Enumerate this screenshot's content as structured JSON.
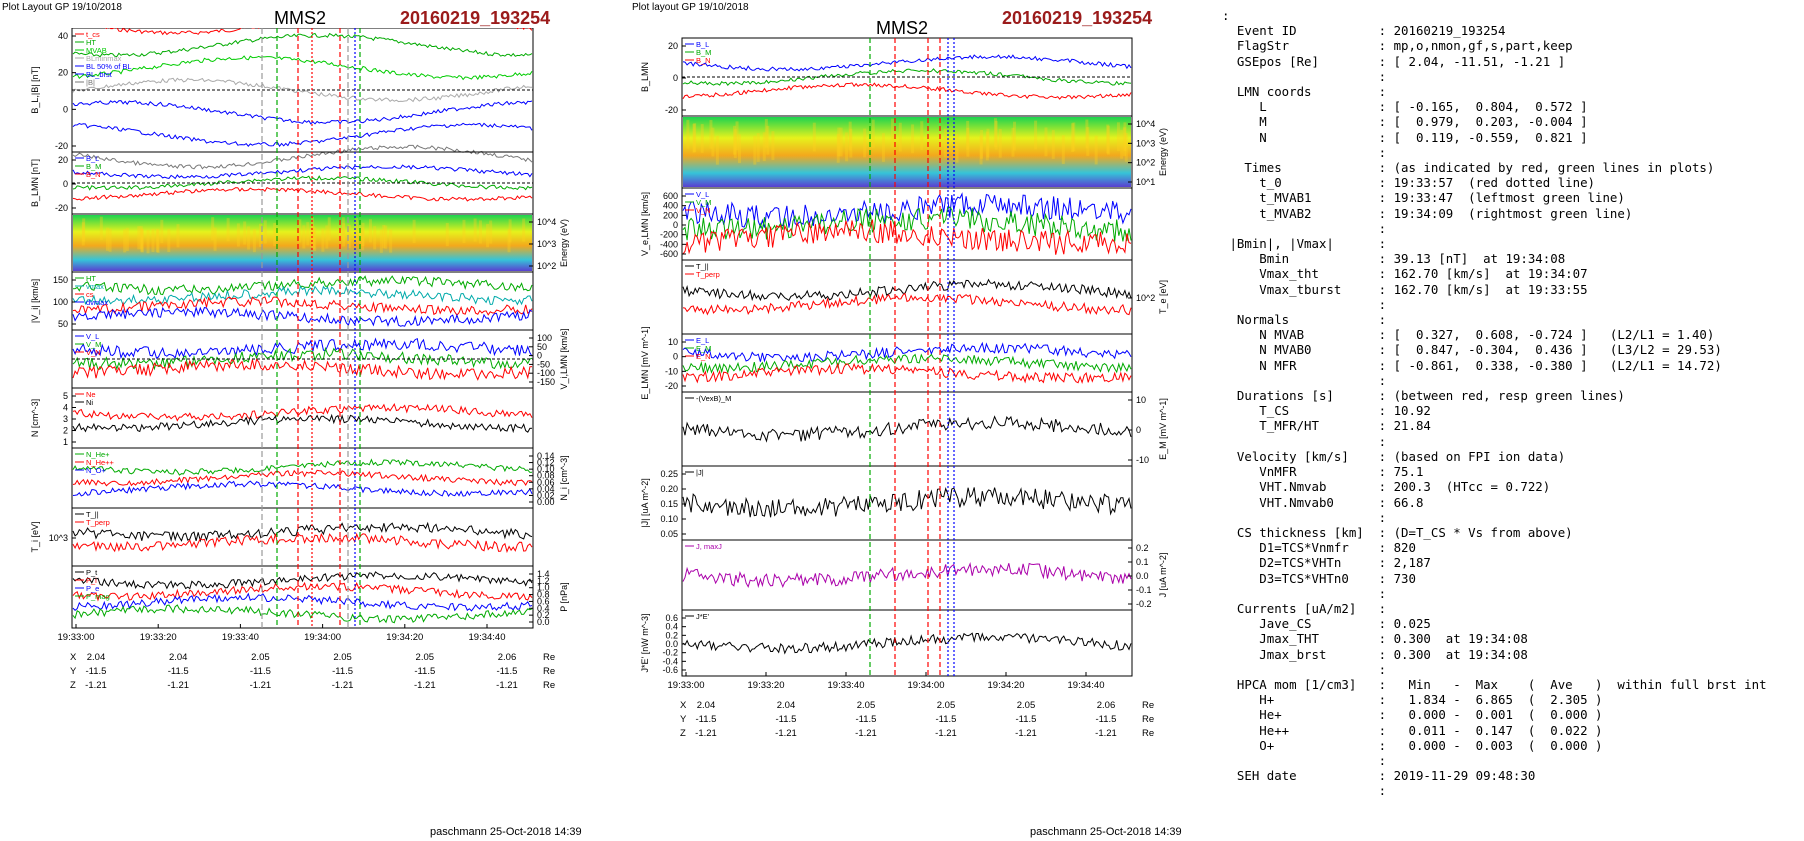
{
  "left": {
    "header": "Plot Layout GP 19/10/2018",
    "spacecraft": "MMS2",
    "event": "20160219_193254",
    "footer": "paschmann 25-Oct-2018 14:39",
    "panels": [
      {
        "ylabel": "B_L,|B| [nT]",
        "ticks": [
          "40",
          "20",
          "0",
          "-20"
        ],
        "legend": [
          {
            "text": "t_cs",
            "color": "#ff0000"
          },
          {
            "text": "HT",
            "color": "#00aa00"
          },
          {
            "text": "MVAB",
            "color": "#00cc00"
          },
          {
            "text": "BLminmax",
            "color": "#aaaaaa"
          },
          {
            "text": "BL 50% of BL",
            "color": "#0000ff"
          },
          {
            "text": "BL_brst",
            "color": "#0000ff"
          },
          {
            "text": "|B|",
            "color": "#777777"
          }
        ]
      },
      {
        "ylabel": "B_LMN [nT]",
        "ticks": [
          "20",
          "0",
          "-20"
        ],
        "legend": [
          {
            "text": "B_L",
            "color": "#0000ff"
          },
          {
            "text": "B_M",
            "color": "#00aa00"
          },
          {
            "text": "B_N",
            "color": "#ff0000"
          }
        ]
      },
      {
        "ylabel": "Energy (eV)",
        "ticks": [
          "10^4",
          "10^3",
          "10^2"
        ],
        "legend": []
      },
      {
        "ylabel": "|V_i| [km/s]",
        "ticks": [
          "150",
          "100",
          "50"
        ],
        "legend": [
          {
            "text": "HT",
            "color": "#00aa00"
          },
          {
            "text": "vmax",
            "color": "#00aaaa"
          },
          {
            "text": "cs",
            "color": "#ff0000"
          },
          {
            "text": "dvmax",
            "color": "#0000ff"
          }
        ]
      },
      {
        "ylabel": "V_i,LMN [km/s]",
        "ticks": [
          "100",
          "50",
          "0",
          "-50",
          "-100",
          "-150"
        ],
        "legend": [
          {
            "text": "V_L",
            "color": "#0000ff"
          },
          {
            "text": "V_M",
            "color": "#00aa00"
          },
          {
            "text": "V_N",
            "color": "#ff0000"
          }
        ]
      },
      {
        "ylabel": "N [cm^-3]",
        "ticks": [
          "5",
          "4",
          "3",
          "2",
          "1"
        ],
        "legend": [
          {
            "text": "Ne",
            "color": "#ff0000"
          },
          {
            "text": "Ni",
            "color": "#000000"
          }
        ]
      },
      {
        "ylabel": "N_i [cm^-3]",
        "ticks": [
          "0.14",
          "0.12",
          "0.10",
          "0.08",
          "0.06",
          "0.04",
          "0.02",
          "0.00"
        ],
        "legend": [
          {
            "text": "N_He+",
            "color": "#00aa00"
          },
          {
            "text": "N_He++",
            "color": "#ff0000"
          },
          {
            "text": "N_O+",
            "color": "#0000ff"
          }
        ]
      },
      {
        "ylabel": "T_i [eV]",
        "ticks": [
          "10^3"
        ],
        "legend": [
          {
            "text": "T_||",
            "color": "#000000"
          },
          {
            "text": "T_perp",
            "color": "#ff0000"
          }
        ]
      },
      {
        "ylabel": "P [nPa]",
        "ticks": [
          "1.4",
          "1.2",
          "1.0",
          "0.8",
          "0.6",
          "0.4",
          "0.2",
          "0.0"
        ],
        "legend": [
          {
            "text": "P_t",
            "color": "#000000"
          },
          {
            "text": "P_i",
            "color": "#ff0000"
          },
          {
            "text": "P_e",
            "color": "#0000ff"
          },
          {
            "text": "P_mag",
            "color": "#00aa00"
          }
        ]
      }
    ],
    "time_ticks": [
      "19:33:00",
      "19:33:20",
      "19:33:40",
      "19:34:00",
      "19:34:20",
      "19:34:40"
    ],
    "pos": {
      "X": [
        "2.04",
        "2.04",
        "2.05",
        "2.05",
        "2.05",
        "2.06"
      ],
      "Y": [
        "-11.5",
        "-11.5",
        "-11.5",
        "-11.5",
        "-11.5",
        "-11.5"
      ],
      "Z": [
        "-1.21",
        "-1.21",
        "-1.21",
        "-1.21",
        "-1.21",
        "-1.21"
      ],
      "unit": "Re"
    }
  },
  "middle": {
    "header": "Plot layout GP 19/10/2018",
    "spacecraft": "MMS2",
    "event": "20160219_193254",
    "footer": "paschmann 25-Oct-2018 14:39",
    "panels": [
      {
        "ylabel": "B_LMN",
        "ticks": [
          "20",
          "0",
          "-20"
        ],
        "side": "left",
        "legend": [
          {
            "text": "B_L",
            "color": "#0000ff"
          },
          {
            "text": "B_M",
            "color": "#00aa00"
          },
          {
            "text": "B_N",
            "color": "#ff0000"
          }
        ]
      },
      {
        "ylabel": "Energy (eV)",
        "ticks": [
          "10^4",
          "10^3",
          "10^2",
          "10^1"
        ],
        "side": "right",
        "legend": []
      },
      {
        "ylabel": "V_e,LMN [km/s]",
        "ticks": [
          "600",
          "400",
          "200",
          "0",
          "-200",
          "-400",
          "-600"
        ],
        "side": "left",
        "legend": [
          {
            "text": "V_L",
            "color": "#0000ff"
          },
          {
            "text": "V_M",
            "color": "#00aa00"
          },
          {
            "text": "V_N",
            "color": "#ff0000"
          }
        ]
      },
      {
        "ylabel": "T_e [eV]",
        "ticks": [
          "10^2"
        ],
        "side": "right",
        "legend": [
          {
            "text": "T_||",
            "color": "#000000"
          },
          {
            "text": "T_perp",
            "color": "#ff0000"
          }
        ]
      },
      {
        "ylabel": "E_LMN [mV m^-1]",
        "ticks": [
          "10",
          "0",
          "-10",
          "-20"
        ],
        "side": "left",
        "legend": [
          {
            "text": "E_L",
            "color": "#0000ff"
          },
          {
            "text": "E_M",
            "color": "#00aa00"
          },
          {
            "text": "E_N",
            "color": "#ff0000"
          }
        ]
      },
      {
        "ylabel": "E_M [mV m^-1]",
        "ticks": [
          "10",
          "0",
          "-10"
        ],
        "side": "right",
        "legend": [
          {
            "text": "-(VexB)_M",
            "color": "#000000"
          }
        ]
      },
      {
        "ylabel": "|J| [uA m^-2]",
        "ticks": [
          "0.25",
          "0.20",
          "0.15",
          "0.10",
          "0.05"
        ],
        "side": "left",
        "legend": [
          {
            "text": "|J|",
            "color": "#000000"
          }
        ]
      },
      {
        "ylabel": "J [uA m^-2]",
        "ticks": [
          "0.2",
          "0.1",
          "0.0",
          "-0.1",
          "-0.2"
        ],
        "side": "right",
        "legend": [
          {
            "text": "J, maxJ",
            "color": "#aa00aa"
          }
        ]
      },
      {
        "ylabel": "J*E' [nW m^-3]",
        "ticks": [
          "0.6",
          "0.4",
          "0.2",
          "0.0",
          "-0.2",
          "-0.4",
          "-0.6"
        ],
        "side": "left",
        "legend": [
          {
            "text": "J*E'",
            "color": "#000000"
          }
        ]
      }
    ],
    "time_ticks": [
      "19:33:00",
      "19:33:20",
      "19:33:40",
      "19:34:00",
      "19:34:20",
      "19:34:40"
    ],
    "pos": {
      "X": [
        "2.04",
        "2.04",
        "2.05",
        "2.05",
        "2.05",
        "2.06"
      ],
      "Y": [
        "-11.5",
        "-11.5",
        "-11.5",
        "-11.5",
        "-11.5",
        "-11.5"
      ],
      "Z": [
        "-1.21",
        "-1.21",
        "-1.21",
        "-1.21",
        "-1.21",
        "-1.21"
      ],
      "unit": "Re"
    }
  },
  "info_text": [
    ":",
    "  Event ID           : 20160219_193254",
    "  FlagStr            : mp,o,nmon,gf,s,part,keep",
    "  GSEpos [Re]        : [ 2.04, -11.51, -1.21 ]",
    "                     :",
    "  LMN coords         :",
    "     L               : [ -0.165,  0.804,  0.572 ]",
    "     M               : [  0.979,  0.203, -0.004 ]",
    "     N               : [  0.119, -0.559,  0.821 ]",
    "                     :",
    "   Times             : (as indicated by red, green lines in plots)",
    "     t_0             : 19:33:57  (red dotted line)",
    "     t_MVAB1         : 19:33:47  (leftmost green line)",
    "     t_MVAB2         : 19:34:09  (rightmost green line)",
    "                     :",
    " |Bmin|, |Vmax|      :",
    "     Bmin            : 39.13 [nT]  at 19:34:08",
    "     Vmax_tht        : 162.70 [km/s]  at 19:34:07",
    "     Vmax_tburst     : 162.70 [km/s]  at 19:33:55",
    "                     :",
    "  Normals            :",
    "     N MVAB          : [  0.327,  0.608, -0.724 ]   (L2/L1 = 1.40)",
    "     N MVAB0         : [  0.847, -0.304,  0.436 ]   (L3/L2 = 29.53)",
    "     N MFR           : [ -0.861,  0.338, -0.380 ]   (L2/L1 = 14.72)",
    "                     :",
    "  Durations [s]      : (between red, resp green lines)",
    "     T_CS            : 10.92",
    "     T_MFR/HT        : 21.84",
    "                     :",
    "  Velocity [km/s]    : (based on FPI ion data)",
    "     VnMFR           : 75.1",
    "     VHT.Nmvab       : 200.3  (HTcc = 0.722)",
    "     VHT.Nmvab0      : 66.8",
    "                     :",
    "  CS thickness [km]  : (D=T_CS * Vs from above)",
    "     D1=TCS*Vnmfr    : 820",
    "     D2=TCS*VHTn     : 2,187",
    "     D3=TCS*VHTn0    : 730",
    "                     :",
    "  Currents [uA/m2]   :",
    "     Jave_CS         : 0.025",
    "     Jmax_THT        : 0.300  at 19:34:08",
    "     Jmax_brst       : 0.300  at 19:34:08",
    "                     :",
    "  HPCA mom [1/cm3]   :   Min   -  Max    (  Ave   )  within full brst int",
    "     H+              :   1.834 -  6.865  (  2.305 )",
    "     He+             :   0.000 -  0.001  (  0.000 )",
    "     He++            :   0.011 -  0.147  (  0.022 )",
    "     O+              :   0.000 -  0.003  (  0.000 )",
    "                     :",
    "  SEH date           : 2019-11-29 09:48:30",
    "                     :"
  ],
  "colors": {
    "event": "#9b1b1b",
    "red": "#ff0000",
    "green": "#00aa00",
    "blue": "#0000ff",
    "gray": "#888888"
  }
}
